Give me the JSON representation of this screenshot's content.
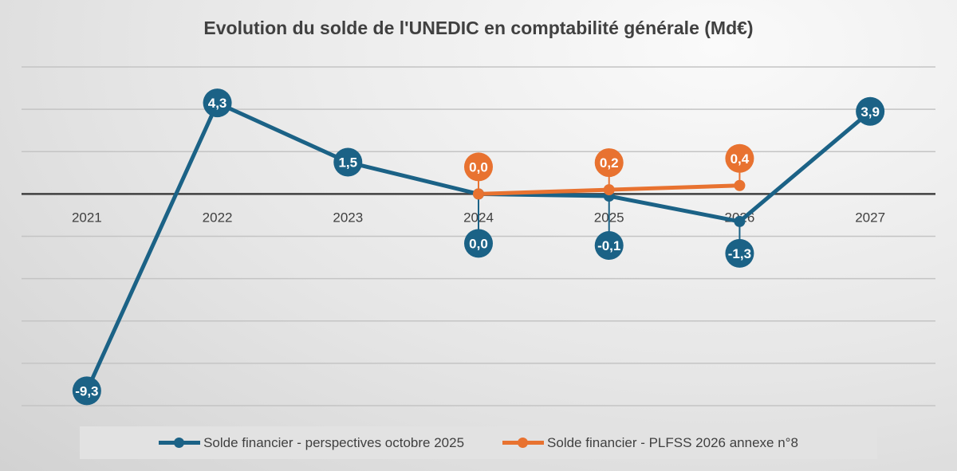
{
  "chart_data": {
    "type": "line",
    "title": "Evolution du solde de l'UNEDIC en comptabilité générale (Md€)",
    "categories": [
      "2021",
      "2022",
      "2023",
      "2024",
      "2025",
      "2026",
      "2027"
    ],
    "series": [
      {
        "name": "Solde financier - perspectives octobre 2025",
        "color": "#1b6286",
        "values": [
          -9.3,
          4.3,
          1.5,
          0.0,
          -0.1,
          -1.3,
          3.9
        ],
        "labels": [
          "-9,3",
          "4,3",
          "1,5",
          "0,0",
          "-0,1",
          "-1,3",
          "3,9"
        ]
      },
      {
        "name": "Solde financier - PLFSS 2026 annexe n°8",
        "color": "#e87230",
        "values": [
          null,
          null,
          null,
          0.0,
          0.2,
          0.4,
          null
        ],
        "labels": [
          null,
          null,
          null,
          "0,0",
          "0,2",
          "0,4",
          null
        ]
      }
    ],
    "ylim": [
      -10,
      6
    ],
    "ytick_step": 2,
    "y_tick_labels_shown": false,
    "grid": true,
    "legend": "bottom"
  }
}
